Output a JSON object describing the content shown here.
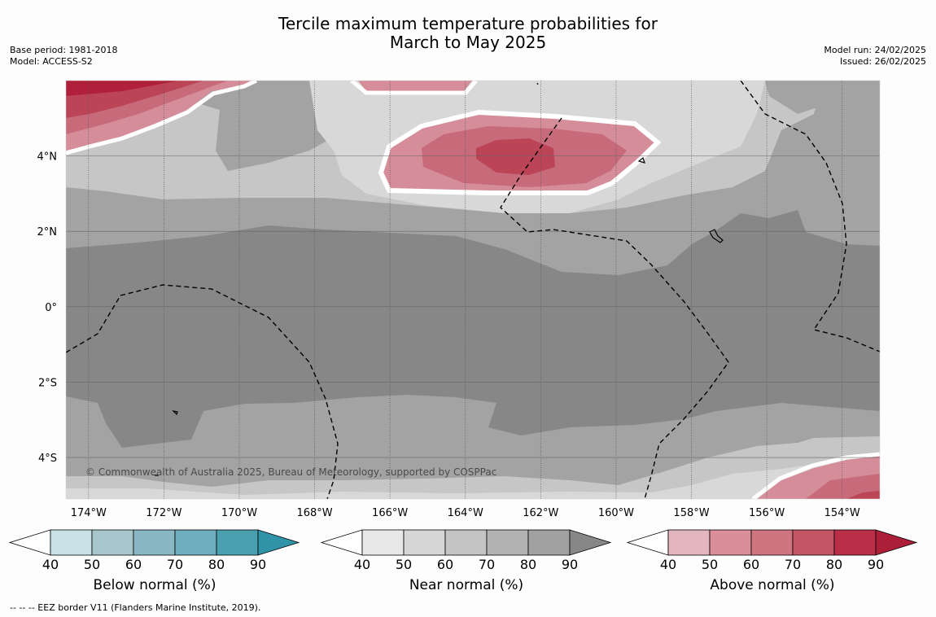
{
  "title": {
    "line1": "Tercile maximum temperature probabilities for",
    "line2": "March to May 2025"
  },
  "meta_left": {
    "base_period": "Base period: 1981-2018",
    "model": "Model: ACCESS-S2"
  },
  "meta_right": {
    "model_run": "Model run: 24/02/2025",
    "issued": "Issued: 26/02/2025"
  },
  "map": {
    "lon_labels": [
      "174°W",
      "172°W",
      "170°W",
      "168°W",
      "166°W",
      "164°W",
      "162°W",
      "160°W",
      "158°W",
      "156°W",
      "154°W"
    ],
    "lat_labels": [
      "4°N",
      "2°N",
      "0°",
      "2°S",
      "4°S"
    ],
    "lon_values": [
      -174,
      -172,
      -170,
      -168,
      -166,
      -164,
      -162,
      -160,
      -158,
      -156,
      -154
    ],
    "lat_values": [
      4,
      2,
      0,
      -2,
      -4
    ],
    "lon_range": [
      -174.6,
      -153.0
    ],
    "lat_range": [
      -5.1,
      6.0
    ],
    "copyright": "© Commonwealth of Australia 2025, Bureau of Meteorology, supported by COSPPac",
    "colors": {
      "near_60_70": "#c6c6c6",
      "near_70_80": "#a3a3a3",
      "near_80_90": "#878787",
      "near_50_60": "#d8d8d8",
      "above_50_60": "#d58d99",
      "above_60_70": "#c76a7a",
      "above_70_80": "#bc4457",
      "above_80_90": "#b1203a"
    }
  },
  "colorbars": [
    {
      "label": "Below normal (%)",
      "ticks": [
        "40",
        "50",
        "60",
        "70",
        "80",
        "90"
      ],
      "colors": [
        "#ffffff",
        "#c8e2e8",
        "#a8c7cc",
        "#8ab7c4",
        "#6eaebe",
        "#4ba0b0",
        "#3193a8"
      ]
    },
    {
      "label": "Near normal (%)",
      "ticks": [
        "40",
        "50",
        "60",
        "70",
        "80",
        "90"
      ],
      "colors": [
        "#ffffff",
        "#e8e8e8",
        "#d6d6d6",
        "#c4c4c4",
        "#b3b3b3",
        "#a1a1a1",
        "#878787"
      ]
    },
    {
      "label": "Above normal (%)",
      "ticks": [
        "40",
        "50",
        "60",
        "70",
        "80",
        "90"
      ],
      "colors": [
        "#ffffff",
        "#e3b6bd",
        "#d98e99",
        "#cf7580",
        "#c45565",
        "#ba2f47",
        "#ad1f38"
      ]
    }
  ],
  "footnote": "--  --  -- EEZ border V11 (Flanders Marine Institute, 2019)."
}
